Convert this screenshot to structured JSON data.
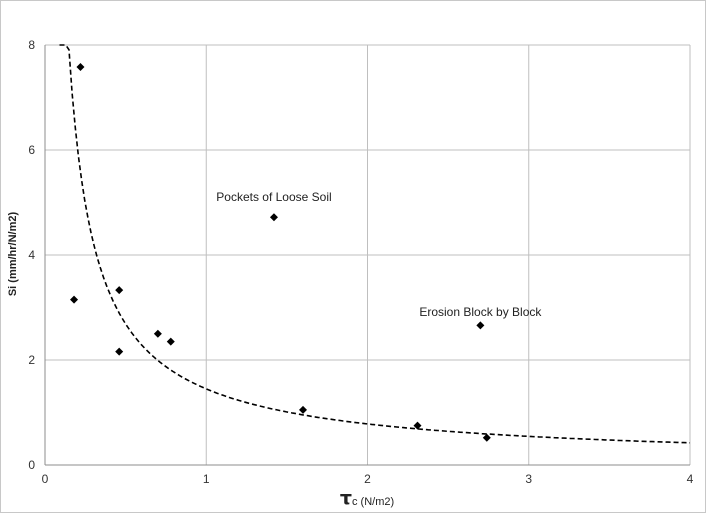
{
  "chart_data": {
    "type": "scatter",
    "title": "",
    "xlabel": {
      "symbol": "τ",
      "subscript_unit": "c (N/m2)"
    },
    "ylabel": "Si (mm/hr/N/m2)",
    "xlim": [
      0,
      4
    ],
    "ylim": [
      0,
      8
    ],
    "xticks": [
      "0",
      "1",
      "2",
      "3",
      "4"
    ],
    "yticks": [
      "0",
      "2",
      "4",
      "6",
      "8"
    ],
    "grid": true,
    "legend": "none",
    "series": [
      {
        "marker": "diamond",
        "color": "#000000",
        "points": [
          {
            "x": 0.22,
            "y": 7.58
          },
          {
            "x": 0.18,
            "y": 3.15
          },
          {
            "x": 0.46,
            "y": 3.33
          },
          {
            "x": 0.46,
            "y": 2.16
          },
          {
            "x": 0.7,
            "y": 2.5
          },
          {
            "x": 0.78,
            "y": 2.35
          },
          {
            "x": 1.42,
            "y": 4.72
          },
          {
            "x": 1.6,
            "y": 1.05
          },
          {
            "x": 2.31,
            "y": 0.75
          },
          {
            "x": 2.7,
            "y": 2.66
          },
          {
            "x": 2.74,
            "y": 0.52
          }
        ]
      }
    ],
    "trendline": {
      "style": "dashed",
      "color": "#000000",
      "form": "power",
      "coefficient": 1.45,
      "exponent": -0.89,
      "x_range": [
        0.09,
        4.0
      ]
    },
    "annotations": [
      {
        "text": "Pockets of Loose Soil",
        "x": 1.42,
        "y": 5.03
      },
      {
        "text": "Erosion Block by Block",
        "x": 2.7,
        "y": 2.84
      }
    ]
  }
}
